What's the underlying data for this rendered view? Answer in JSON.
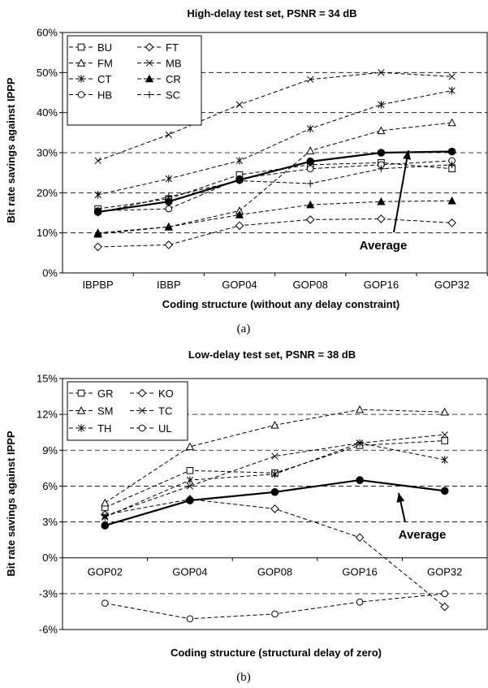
{
  "chart_data": [
    {
      "type": "line",
      "title": "High-delay test set, PSNR = 34 dB",
      "xlabel": "Coding structure (without any delay constraint)",
      "ylabel": "Bit rate savings against IPPP",
      "caption": "(a)",
      "annotation": "Average",
      "categories": [
        "IBPBP",
        "IBBP",
        "GOP04",
        "GOP08",
        "GOP16",
        "GOP32"
      ],
      "ylim": [
        0,
        60
      ],
      "yticks": [
        0,
        10,
        20,
        30,
        40,
        50,
        60
      ],
      "ytick_labels": [
        "0%",
        "10%",
        "20%",
        "30%",
        "40%",
        "50%",
        "60%"
      ],
      "grid": "horizontal dashed",
      "legend_position": "top-left",
      "series": [
        {
          "name": "BU",
          "marker": "square",
          "values": [
            16,
            18.5,
            24.5,
            27,
            27.5,
            26
          ]
        },
        {
          "name": "FT",
          "marker": "diamond",
          "values": [
            6.5,
            7,
            11.8,
            13.3,
            13.5,
            12.5
          ]
        },
        {
          "name": "FM",
          "marker": "triangle",
          "values": [
            10,
            11.5,
            15.5,
            30.5,
            35.5,
            37.5
          ]
        },
        {
          "name": "MB",
          "marker": "x",
          "values": [
            28,
            34.5,
            42,
            48.3,
            50,
            49
          ]
        },
        {
          "name": "CT",
          "marker": "star",
          "values": [
            19.5,
            23.5,
            28,
            36,
            42,
            45.5
          ]
        },
        {
          "name": "CR",
          "marker": "triangle-filled",
          "values": [
            9.7,
            11.5,
            14.5,
            17,
            17.8,
            18
          ]
        },
        {
          "name": "HB",
          "marker": "circle",
          "values": [
            15.5,
            16,
            23.5,
            26,
            27,
            28
          ]
        },
        {
          "name": "SC",
          "marker": "plus",
          "values": [
            15,
            19,
            23,
            22.3,
            26,
            27
          ]
        },
        {
          "name": "Average",
          "marker": "circle-filled",
          "bold": true,
          "values": [
            15.2,
            17.8,
            23.2,
            27.8,
            30,
            30.3
          ]
        }
      ]
    },
    {
      "type": "line",
      "title": "Low-delay test set, PSNR = 38 dB",
      "xlabel": "Coding structure (structural delay of zero)",
      "ylabel": "Bit rate savings against IPPP",
      "caption": "(b)",
      "annotation": "Average",
      "categories": [
        "GOP02",
        "GOP04",
        "GOP08",
        "GOP16",
        "GOP32"
      ],
      "ylim": [
        -6,
        15
      ],
      "yticks": [
        -6,
        -3,
        0,
        3,
        6,
        9,
        12,
        15
      ],
      "ytick_labels": [
        "-6%",
        "-3%",
        "0%",
        "3%",
        "6%",
        "9%",
        "12%",
        "15%"
      ],
      "grid": "horizontal dashed",
      "legend_position": "top-left",
      "series": [
        {
          "name": "GR",
          "marker": "square",
          "values": [
            4.2,
            7.3,
            7.1,
            9.4,
            9.8
          ]
        },
        {
          "name": "KO",
          "marker": "diamond",
          "values": [
            3.6,
            4.9,
            4.1,
            1.7,
            -4.1
          ]
        },
        {
          "name": "SM",
          "marker": "triangle",
          "values": [
            4.6,
            9.3,
            11.1,
            12.4,
            12.2
          ]
        },
        {
          "name": "TC",
          "marker": "x",
          "values": [
            3.5,
            6.0,
            8.5,
            9.6,
            10.3
          ]
        },
        {
          "name": "TH",
          "marker": "star",
          "values": [
            3.4,
            6.5,
            7.0,
            9.6,
            8.2
          ]
        },
        {
          "name": "UL",
          "marker": "circle",
          "values": [
            -3.8,
            -5.1,
            -4.7,
            -3.7,
            -3.0
          ]
        },
        {
          "name": "Average",
          "marker": "circle-filled",
          "bold": true,
          "values": [
            2.7,
            4.8,
            5.5,
            6.5,
            5.6
          ]
        }
      ]
    }
  ]
}
